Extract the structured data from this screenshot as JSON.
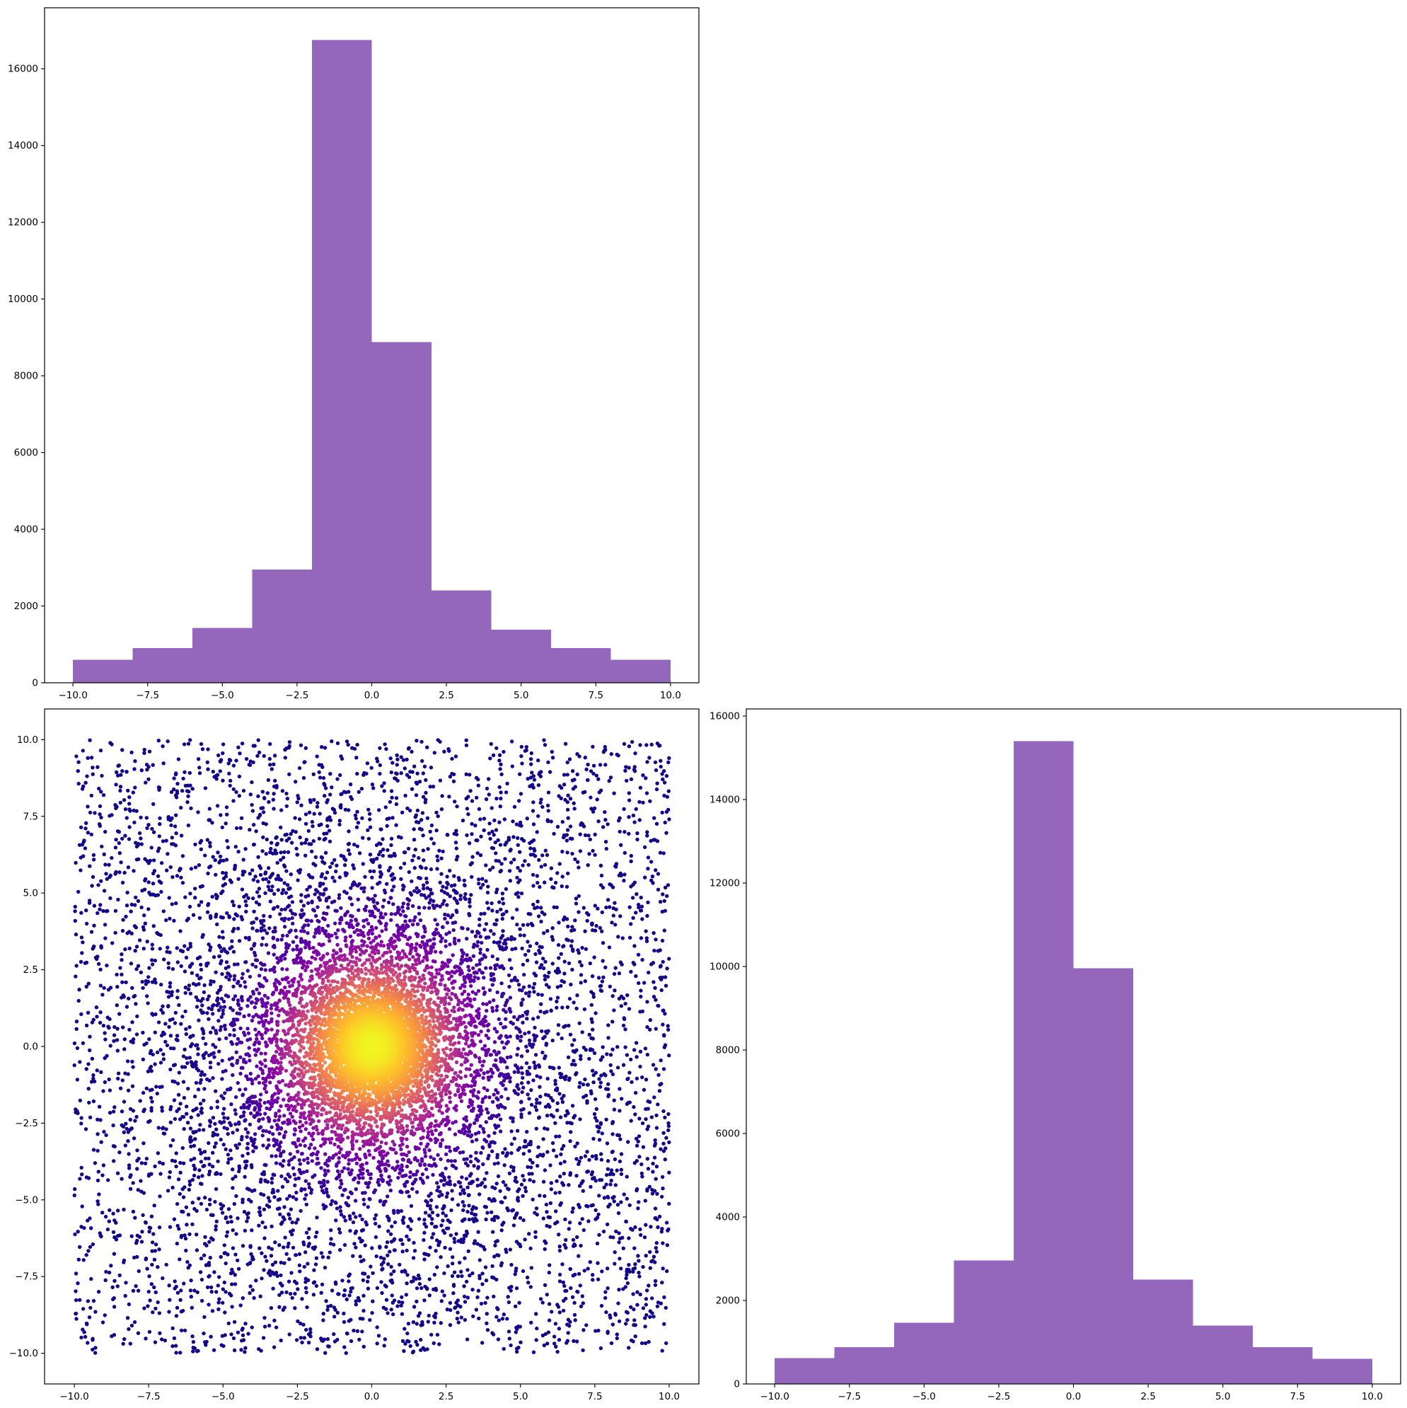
{
  "colors": {
    "histogram_bar": "#9467bd",
    "scatter_colormap": "plasma",
    "frame": "#000000",
    "background": "#ffffff"
  },
  "chart_data": [
    {
      "id": "top-left-histogram",
      "type": "bar",
      "title": "",
      "xlabel": "",
      "ylabel": "",
      "bin_edges": [
        -10,
        -8,
        -6,
        -4,
        -2,
        0,
        2,
        4,
        6,
        8,
        10
      ],
      "values": [
        600,
        900,
        1430,
        2950,
        16750,
        8880,
        2410,
        1380,
        900,
        600
      ],
      "xlim": [
        -10.95,
        10.95
      ],
      "ylim": [
        0,
        17590
      ],
      "xticks": [
        -10,
        -7.5,
        -5,
        -2.5,
        0,
        2.5,
        5,
        7.5,
        10
      ],
      "xtick_labels": [
        "−10.0",
        "−7.5",
        "−5.0",
        "−2.5",
        "0.0",
        "2.5",
        "5.0",
        "7.5",
        "10.0"
      ],
      "yticks": [
        0,
        2000,
        4000,
        6000,
        8000,
        10000,
        12000,
        14000,
        16000
      ],
      "ytick_labels": [
        "0",
        "2000",
        "4000",
        "6000",
        "8000",
        "10000",
        "12000",
        "14000",
        "16000"
      ],
      "grid": false
    },
    {
      "id": "bottom-left-scatter",
      "type": "scatter",
      "title": "",
      "xlabel": "",
      "ylabel": "",
      "description_of_data": "Points uniformly spread over the square [-10,10]x[-10,10] with a strong density concentration near the origin; point color follows the plasma colormap by local density (yellow at the center, dark purple at the edges).",
      "x_range": [
        -10,
        10
      ],
      "y_range": [
        -10,
        10
      ],
      "density_center": [
        0,
        0
      ],
      "xlim": [
        -11,
        11
      ],
      "ylim": [
        -11,
        11
      ],
      "xticks": [
        -10,
        -7.5,
        -5,
        -2.5,
        0,
        2.5,
        5,
        7.5,
        10
      ],
      "xtick_labels": [
        "−10.0",
        "−7.5",
        "−5.0",
        "−2.5",
        "0.0",
        "2.5",
        "5.0",
        "7.5",
        "10.0"
      ],
      "yticks": [
        -10,
        -7.5,
        -5,
        -2.5,
        0,
        2.5,
        5,
        7.5,
        10
      ],
      "ytick_labels": [
        "−10.0",
        "−7.5",
        "−5.0",
        "−2.5",
        "0.0",
        "2.5",
        "5.0",
        "7.5",
        "10.0"
      ],
      "grid": false
    },
    {
      "id": "bottom-right-histogram",
      "type": "bar",
      "title": "",
      "xlabel": "",
      "ylabel": "",
      "bin_edges": [
        -10,
        -8,
        -6,
        -4,
        -2,
        0,
        2,
        4,
        6,
        8,
        10
      ],
      "values": [
        620,
        880,
        1470,
        2960,
        15400,
        9960,
        2500,
        1400,
        880,
        600
      ],
      "xlim": [
        -10.95,
        10.95
      ],
      "ylim": [
        0,
        16170
      ],
      "xticks": [
        -10,
        -7.5,
        -5,
        -2.5,
        0,
        2.5,
        5,
        7.5,
        10
      ],
      "xtick_labels": [
        "−10.0",
        "−7.5",
        "−5.0",
        "−2.5",
        "0.0",
        "2.5",
        "5.0",
        "7.5",
        "10.0"
      ],
      "yticks": [
        0,
        2000,
        4000,
        6000,
        8000,
        10000,
        12000,
        14000,
        16000
      ],
      "ytick_labels": [
        "0",
        "2000",
        "4000",
        "6000",
        "8000",
        "10000",
        "12000",
        "14000",
        "16000"
      ],
      "grid": false
    }
  ]
}
